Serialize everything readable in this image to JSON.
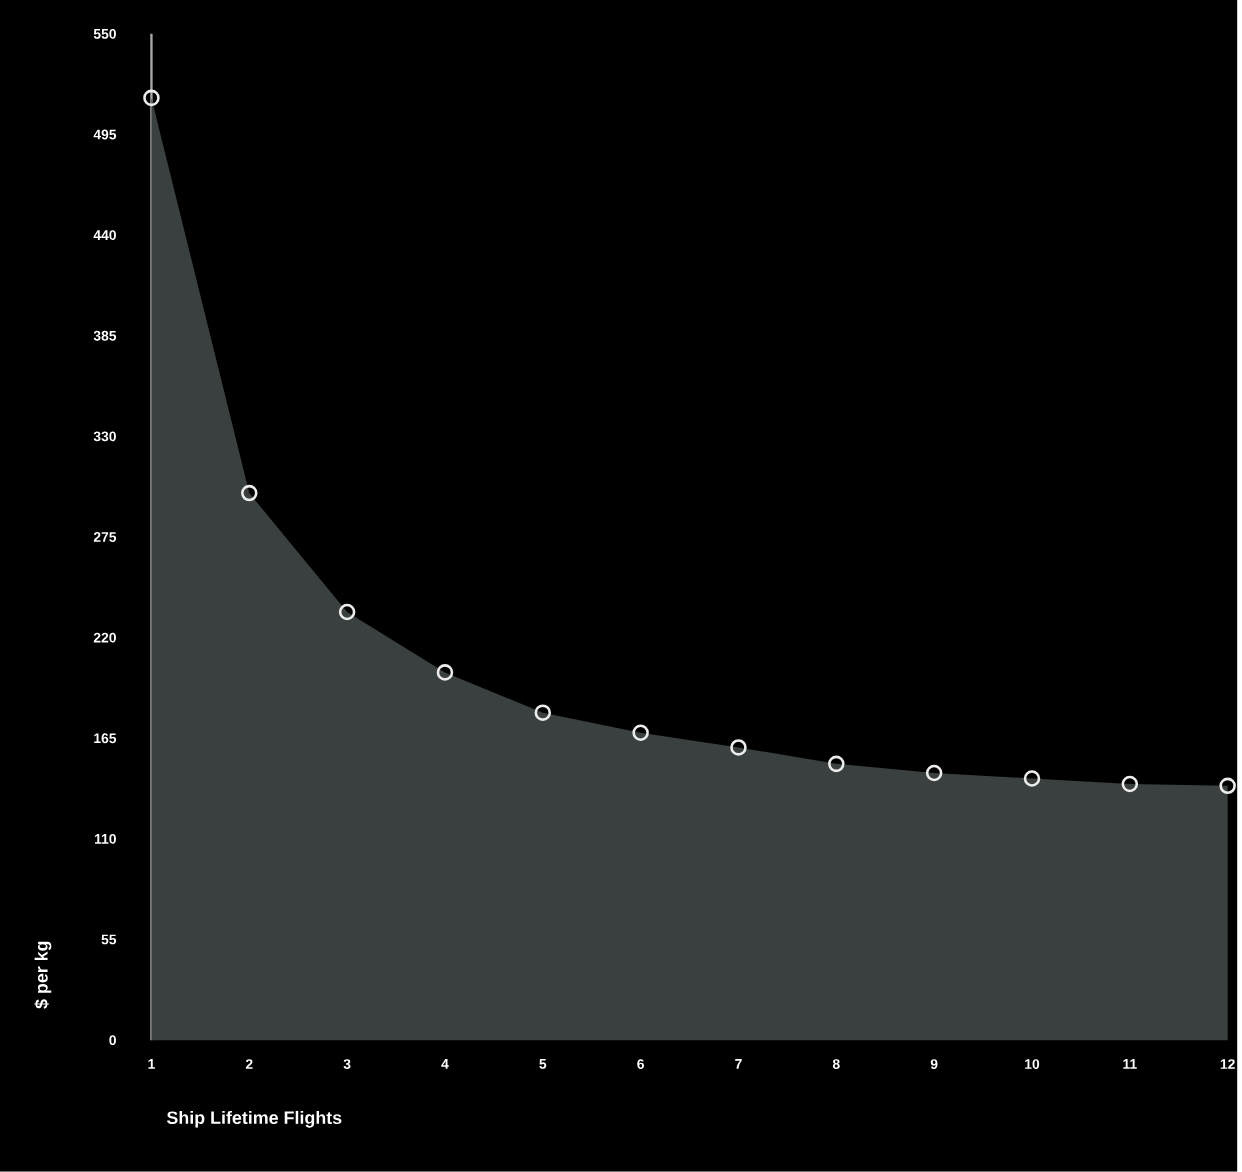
{
  "chart_data": {
    "type": "area",
    "xlabel": "Ship Lifetime Flights",
    "ylabel": "$ per kg",
    "x": [
      1,
      2,
      3,
      4,
      5,
      6,
      7,
      8,
      9,
      10,
      11,
      12
    ],
    "values": [
      515,
      299,
      234,
      201,
      179,
      168,
      160,
      151,
      146,
      143,
      140,
      139
    ],
    "color": "#3a3f3f",
    "marker": "circle",
    "xlim": [
      1,
      12.1
    ],
    "xticks": [
      1,
      2,
      3,
      4,
      5,
      6,
      7,
      8,
      9,
      10,
      11,
      12
    ],
    "ylim": [
      0,
      550
    ],
    "yticks": [
      0,
      55,
      110,
      165,
      220,
      275,
      330,
      385,
      440,
      495,
      550
    ]
  }
}
